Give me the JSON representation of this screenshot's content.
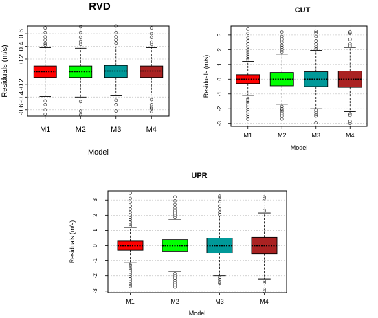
{
  "chart_data": [
    {
      "id": "rvd",
      "type": "boxplot",
      "title": "RVD",
      "xlabel": "Model",
      "ylabel": "Residuals (m/s)",
      "categories": [
        "M1",
        "M2",
        "M3",
        "M4"
      ],
      "ylim": [
        -0.7,
        0.72
      ],
      "yticks": [
        -0.6,
        -0.4,
        -0.2,
        0.2,
        0.4,
        0.6
      ],
      "ytick_labels": [
        "-0.6",
        "-0.4",
        "-0.2",
        "0.2",
        "0.4",
        "0.6"
      ],
      "grid": true,
      "boxes": [
        {
          "name": "M1",
          "color": "#ff0000",
          "q1": -0.09,
          "median": 0.0,
          "q3": 0.09,
          "whisker_low": -0.39,
          "whisker_high": 0.38,
          "outliers": [
            0.69,
            0.62,
            0.55,
            0.5,
            0.45,
            0.42,
            -0.46,
            -0.52,
            -0.6,
            -0.67
          ]
        },
        {
          "name": "M2",
          "color": "#00ff00",
          "q1": -0.09,
          "median": 0.0,
          "q3": 0.09,
          "whisker_low": -0.4,
          "whisker_high": 0.37,
          "outliers": [
            0.71,
            0.62,
            0.54,
            0.48,
            0.43,
            -0.47,
            -0.62,
            -0.68
          ]
        },
        {
          "name": "M3",
          "color": "#009999",
          "q1": -0.09,
          "median": 0.01,
          "q3": 0.1,
          "whisker_low": -0.38,
          "whisker_high": 0.39,
          "outliers": [
            0.72,
            0.62,
            0.55,
            0.5,
            0.45,
            -0.45,
            -0.52,
            -0.62
          ]
        },
        {
          "name": "M4",
          "color": "#aa2222",
          "q1": -0.09,
          "median": 0.01,
          "q3": 0.09,
          "whisker_low": -0.37,
          "whisker_high": 0.38,
          "outliers": [
            0.69,
            0.6,
            0.54,
            0.47,
            0.43,
            -0.44,
            -0.52,
            -0.56,
            -0.58,
            -0.63
          ]
        }
      ]
    },
    {
      "id": "cut",
      "type": "boxplot",
      "title": "CUT",
      "xlabel": "Model",
      "ylabel": "Residuals (m/s)",
      "categories": [
        "M1",
        "M2",
        "M3",
        "M4"
      ],
      "ylim": [
        -3.2,
        3.6
      ],
      "yticks": [
        -3,
        -2,
        -1,
        0,
        1,
        2,
        3
      ],
      "ytick_labels": [
        "-3",
        "-2",
        "-1",
        "0",
        "1",
        "2",
        "3"
      ],
      "grid": true,
      "boxes": [
        {
          "name": "M1",
          "color": "#ff0000",
          "q1": -0.3,
          "median": 0.0,
          "q3": 0.3,
          "whisker_low": -1.1,
          "whisker_high": 1.2,
          "outliers": [
            3.4,
            3.1,
            2.8,
            2.6,
            2.4,
            2.2,
            2.0,
            1.85,
            1.7,
            1.55,
            1.4,
            1.3,
            -1.3,
            -1.4,
            -1.5,
            -1.6,
            -1.75,
            -1.9,
            -2.05,
            -2.2,
            -2.4,
            -2.55,
            -2.7
          ]
        },
        {
          "name": "M2",
          "color": "#00ff00",
          "q1": -0.45,
          "median": 0.0,
          "q3": 0.45,
          "whisker_low": -1.7,
          "whisker_high": 1.7,
          "outliers": [
            3.2,
            2.9,
            2.7,
            2.5,
            2.3,
            2.15,
            2.0,
            1.85,
            -1.85,
            -2.0,
            -2.1,
            -2.2,
            -2.35,
            -2.5,
            -2.7
          ]
        },
        {
          "name": "M3",
          "color": "#009999",
          "q1": -0.5,
          "median": 0.0,
          "q3": 0.5,
          "whisker_low": -2.0,
          "whisker_high": 1.95,
          "outliers": [
            3.25,
            3.15,
            2.9,
            2.6,
            2.4,
            2.2,
            2.05,
            -2.1,
            -2.25,
            -2.4,
            -2.5,
            -2.95
          ]
        },
        {
          "name": "M4",
          "color": "#aa2222",
          "q1": -0.55,
          "median": 0.0,
          "q3": 0.55,
          "whisker_low": -2.2,
          "whisker_high": 2.15,
          "outliers": [
            3.2,
            3.1,
            2.7,
            2.4,
            2.25,
            -2.35,
            -2.45,
            -2.85,
            -3.0
          ]
        }
      ]
    },
    {
      "id": "upr",
      "type": "boxplot",
      "title": "UPR",
      "xlabel": "Model",
      "ylabel": "Residuals (m/s)",
      "categories": [
        "M1",
        "M2",
        "M3",
        "M4"
      ],
      "ylim": [
        -3.1,
        3.6
      ],
      "yticks": [
        -3,
        -2,
        -1,
        0,
        1,
        2,
        3
      ],
      "ytick_labels": [
        "-3",
        "-2",
        "-1",
        "0",
        "1",
        "2",
        "3"
      ],
      "grid": true,
      "boxes": [
        {
          "name": "M1",
          "color": "#ff0000",
          "q1": -0.3,
          "median": 0.0,
          "q3": 0.3,
          "whisker_low": -1.1,
          "whisker_high": 1.2,
          "outliers": [
            3.45,
            3.1,
            2.85,
            2.6,
            2.4,
            2.2,
            2.0,
            1.85,
            1.7,
            1.55,
            1.4,
            1.3,
            -1.25,
            -1.35,
            -1.5,
            -1.6,
            -1.75,
            -1.9,
            -2.05,
            -2.2,
            -2.35,
            -2.5,
            -2.6,
            -2.7
          ]
        },
        {
          "name": "M2",
          "color": "#00ff00",
          "q1": -0.4,
          "median": 0.0,
          "q3": 0.4,
          "whisker_low": -1.7,
          "whisker_high": 1.7,
          "outliers": [
            3.2,
            2.95,
            2.7,
            2.5,
            2.3,
            2.15,
            2.0,
            1.85,
            -1.85,
            -2.0,
            -2.15,
            -2.3,
            -2.45,
            -2.6,
            -2.75
          ]
        },
        {
          "name": "M3",
          "color": "#009999",
          "q1": -0.5,
          "median": 0.0,
          "q3": 0.5,
          "whisker_low": -2.0,
          "whisker_high": 1.95,
          "outliers": [
            3.25,
            3.15,
            2.9,
            2.6,
            2.4,
            2.2,
            2.05,
            -2.1,
            -2.25,
            -2.4,
            -2.5
          ]
        },
        {
          "name": "M4",
          "color": "#aa2222",
          "q1": -0.55,
          "median": 0.0,
          "q3": 0.55,
          "whisker_low": -2.2,
          "whisker_high": 2.15,
          "outliers": [
            3.2,
            3.1,
            2.3,
            -2.35,
            -2.45,
            -2.9,
            -3.0
          ]
        }
      ]
    }
  ]
}
